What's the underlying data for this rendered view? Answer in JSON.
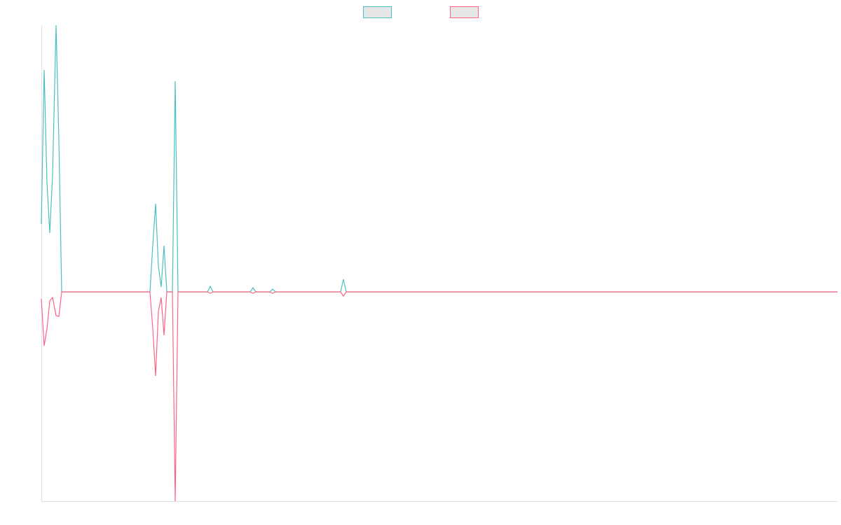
{
  "chart_data": {
    "type": "line",
    "x": [
      0,
      4,
      8,
      12,
      16,
      21,
      25,
      29,
      155,
      159,
      163,
      167,
      171,
      175,
      179,
      187,
      191,
      195,
      237,
      241,
      245,
      298,
      302,
      306,
      326,
      330,
      334,
      427,
      431,
      435,
      1136
    ],
    "series": [
      {
        "color": "#4bc0c0",
        "values": [
          97,
          317,
          157,
          84,
          167,
          381,
          217,
          0,
          0,
          67,
          126,
          37,
          7,
          66,
          0,
          0,
          301,
          0,
          0,
          8,
          0,
          0,
          6,
          0,
          0,
          4,
          0,
          0,
          18,
          0,
          0
        ]
      },
      {
        "color": "#ff6384",
        "values": [
          -10,
          -77,
          -53,
          -13,
          -8,
          -34,
          -35,
          0,
          0,
          -53,
          -120,
          -28,
          -8,
          -62,
          0,
          0,
          -299,
          0,
          0,
          -2,
          0,
          0,
          -2,
          0,
          0,
          -2,
          0,
          0,
          -6,
          0,
          0
        ]
      }
    ],
    "xlim": [
      0,
      1136
    ],
    "ylim": [
      -299,
      381
    ],
    "legend": "top"
  }
}
